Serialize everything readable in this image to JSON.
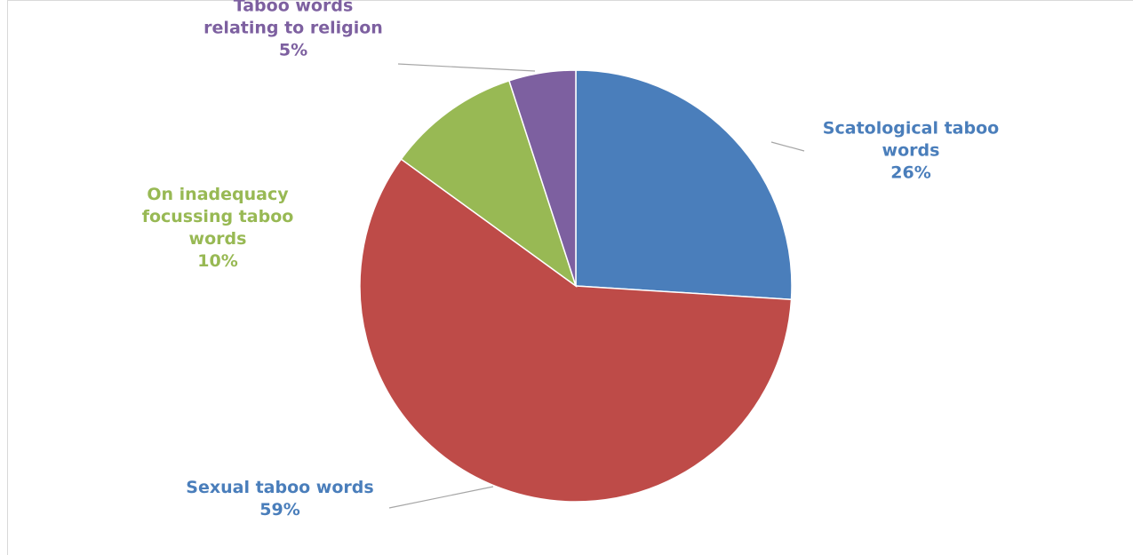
{
  "chart_data": {
    "type": "pie",
    "slices": [
      {
        "label_lines": [
          "Scatological taboo",
          "words"
        ],
        "pct_label": "26%",
        "value": 26,
        "color": "#4a7ebb"
      },
      {
        "label_lines": [
          "Sexual taboo words"
        ],
        "pct_label": "59%",
        "value": 59,
        "color": "#be4b48"
      },
      {
        "label_lines": [
          "On inadequacy",
          "focussing taboo",
          "words"
        ],
        "pct_label": "10%",
        "value": 10,
        "color": "#98b954"
      },
      {
        "label_lines": [
          "Taboo words",
          "relating to religion"
        ],
        "pct_label": "5%",
        "value": 5,
        "color": "#7d60a0"
      }
    ],
    "label_colors": [
      "#4a7ebb",
      "#4a7ebb",
      "#98b954",
      "#7d60a0"
    ]
  }
}
